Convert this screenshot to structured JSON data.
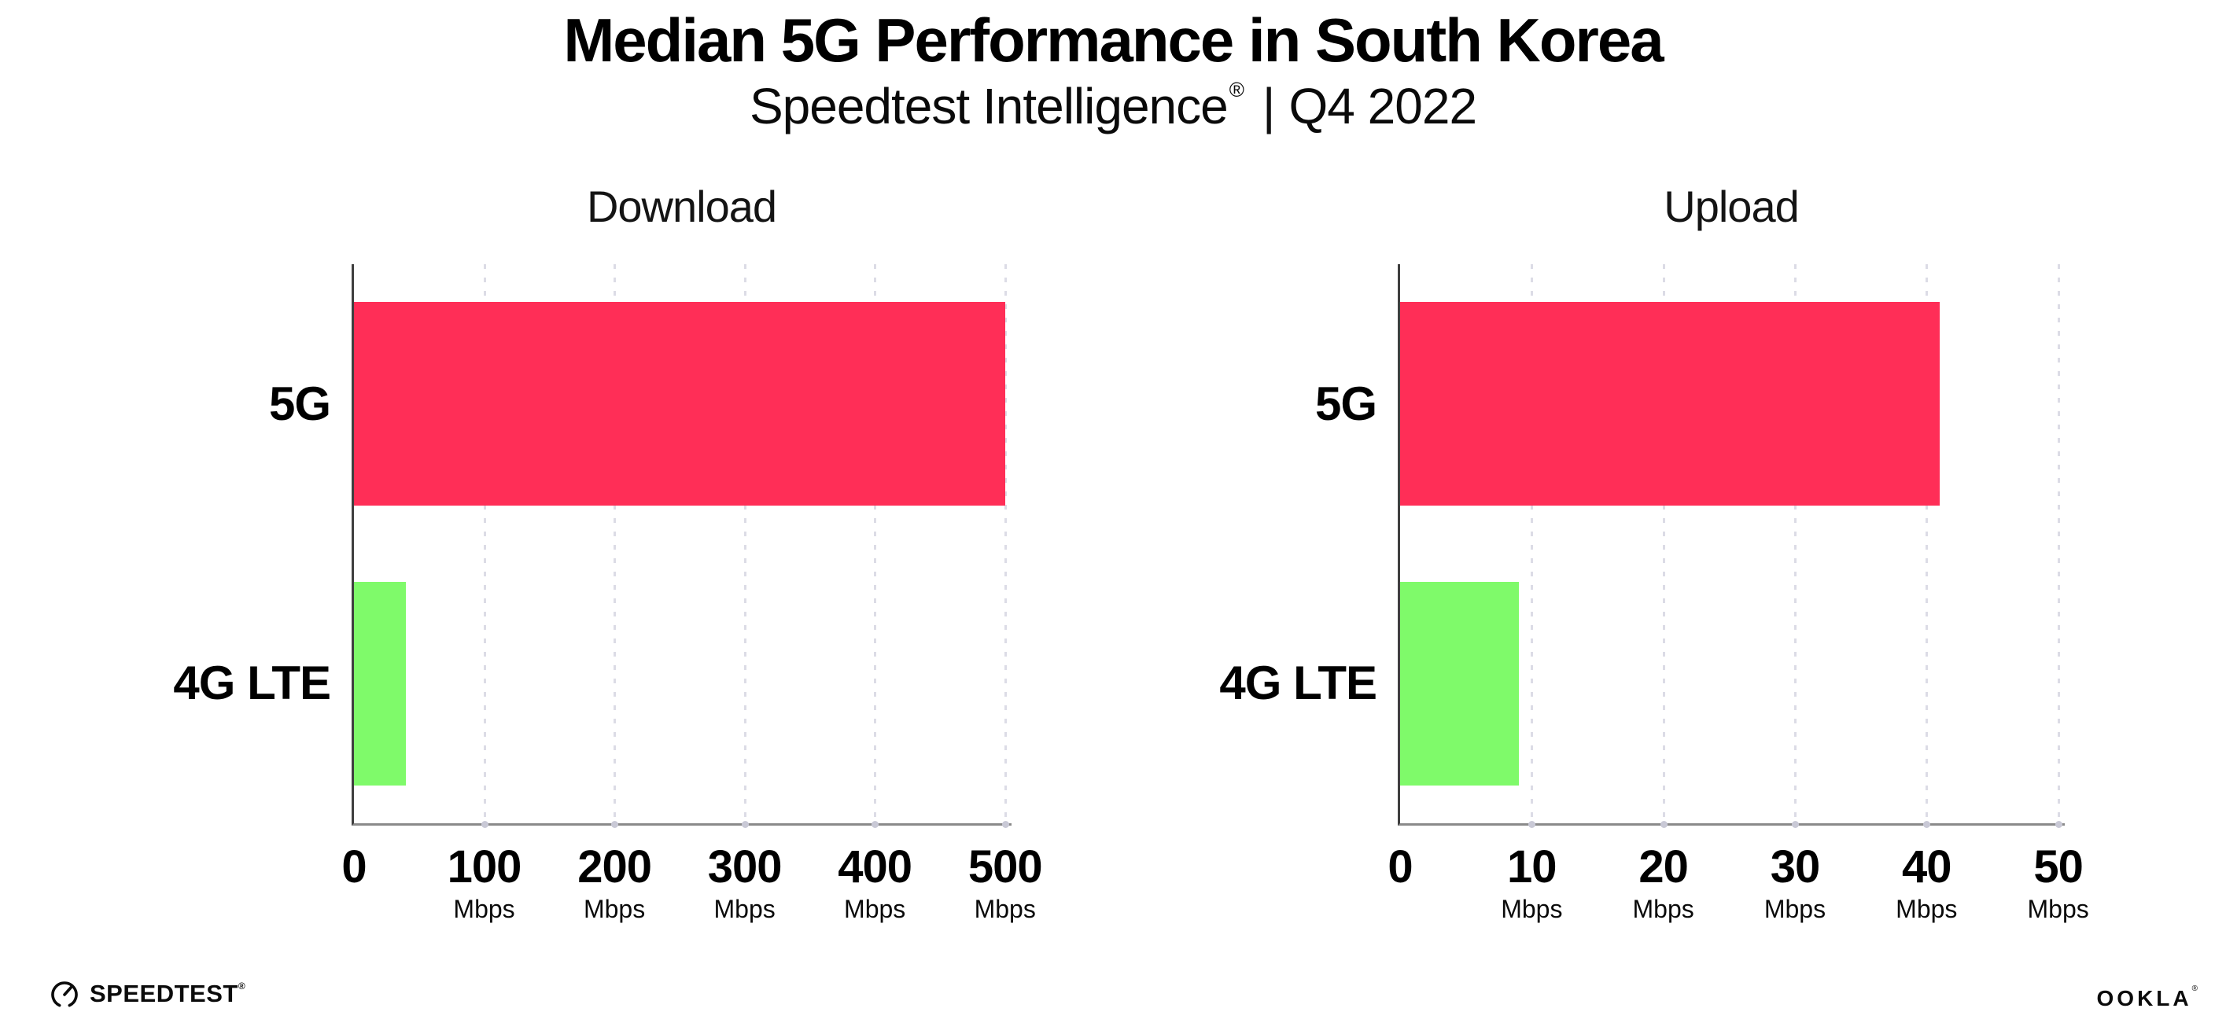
{
  "header": {
    "title": "Median 5G Performance in South Korea",
    "subtitle_brand": "Speedtest Intelligence",
    "subtitle_reg": "®",
    "subtitle_sep": "|",
    "subtitle_period": "Q4 2022"
  },
  "colors": {
    "bar_5g": "#FF2E57",
    "bar_4g_lte": "#7FFA6A",
    "gridline": "#DCDCE6",
    "x_axis": "#8A8A8A",
    "y_axis": "#3F3F3F",
    "text": "#000000"
  },
  "chart_data": [
    {
      "type": "bar",
      "orientation": "horizontal",
      "title": "Download",
      "categories": [
        "5G",
        "4G LTE"
      ],
      "values": [
        500,
        40
      ],
      "unit": "Mbps",
      "xticks": [
        0,
        100,
        200,
        300,
        400,
        500
      ],
      "xlim": [
        0,
        505
      ],
      "grid": "dotted-vertical",
      "legend": "none",
      "bar_colors": [
        "#FF2E57",
        "#7FFA6A"
      ]
    },
    {
      "type": "bar",
      "orientation": "horizontal",
      "title": "Upload",
      "categories": [
        "5G",
        "4G LTE"
      ],
      "values": [
        41,
        9
      ],
      "unit": "Mbps",
      "xticks": [
        0,
        10,
        20,
        30,
        40,
        50
      ],
      "xlim": [
        0,
        50.5
      ],
      "grid": "dotted-vertical",
      "legend": "none",
      "bar_colors": [
        "#FF2E57",
        "#7FFA6A"
      ]
    }
  ],
  "footer": {
    "speedtest_label": "SPEEDTEST",
    "speedtest_reg": "®",
    "ookla_label": "OOKLA",
    "ookla_reg": "®"
  }
}
